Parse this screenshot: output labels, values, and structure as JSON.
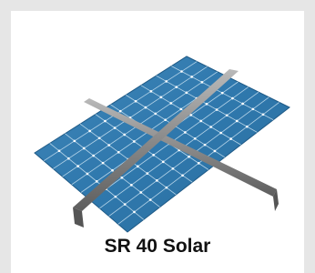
{
  "product": {
    "caption": "SR 40 Solar"
  }
}
